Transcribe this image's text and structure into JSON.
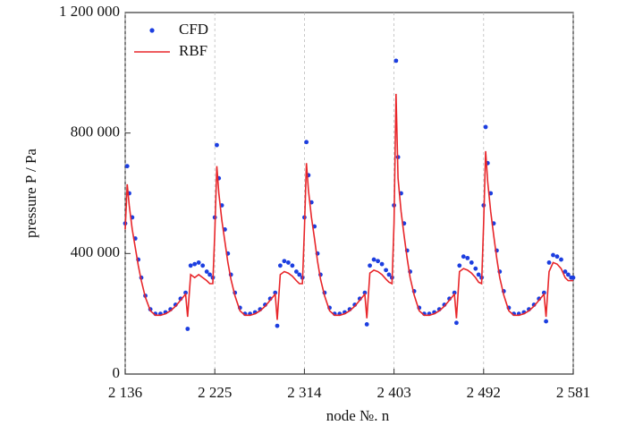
{
  "chart_data": {
    "type": "scatter-line",
    "xlabel": "node №. n",
    "ylabel": "pressure P / Pa",
    "xlim": [
      2136,
      2581
    ],
    "xticks": [
      {
        "value": 2136,
        "label": "2 136"
      },
      {
        "value": 2225,
        "label": "2 225"
      },
      {
        "value": 2314,
        "label": "2 314"
      },
      {
        "value": 2403,
        "label": "2 403"
      },
      {
        "value": 2492,
        "label": "2 492"
      },
      {
        "value": 2581,
        "label": "2 581"
      }
    ],
    "ylim": [
      0,
      1200000
    ],
    "yticks": [
      0,
      {
        "value": 400000,
        "label": "400 000"
      },
      {
        "value": 800000,
        "label": "800 000"
      },
      {
        "value": 1200000,
        "label": "1 200 000"
      }
    ],
    "grid": "x",
    "legend": "upper left",
    "x": [
      2136,
      2138,
      2140,
      2143,
      2146,
      2149,
      2152,
      2156,
      2161,
      2166,
      2171,
      2176,
      2181,
      2186,
      2191,
      2196,
      2198,
      2201,
      2205,
      2209,
      2213,
      2217,
      2220,
      2223,
      2225,
      2227,
      2229,
      2232,
      2235,
      2238,
      2241,
      2245,
      2250,
      2255,
      2260,
      2265,
      2270,
      2275,
      2280,
      2285,
      2287,
      2290,
      2294,
      2298,
      2302,
      2306,
      2309,
      2312,
      2314,
      2316,
      2318,
      2321,
      2324,
      2327,
      2330,
      2334,
      2339,
      2344,
      2349,
      2354,
      2359,
      2364,
      2369,
      2374,
      2376,
      2379,
      2383,
      2387,
      2391,
      2395,
      2398,
      2401,
      2403,
      2405,
      2407,
      2410,
      2413,
      2416,
      2419,
      2423,
      2428,
      2433,
      2438,
      2443,
      2448,
      2453,
      2458,
      2463,
      2465,
      2468,
      2472,
      2476,
      2480,
      2484,
      2487,
      2490,
      2492,
      2494,
      2496,
      2499,
      2502,
      2505,
      2508,
      2512,
      2517,
      2522,
      2527,
      2532,
      2537,
      2542,
      2547,
      2552,
      2554,
      2557,
      2561,
      2565,
      2569,
      2573,
      2576,
      2579,
      2581
    ],
    "series": [
      {
        "name": "CFD",
        "color": "#1c3ee0",
        "style": "points",
        "values": [
          500000,
          690000,
          600000,
          520000,
          450000,
          380000,
          320000,
          260000,
          215000,
          200000,
          200000,
          205000,
          215000,
          230000,
          250000,
          270000,
          150000,
          360000,
          365000,
          370000,
          360000,
          340000,
          330000,
          320000,
          520000,
          760000,
          650000,
          560000,
          480000,
          400000,
          330000,
          270000,
          220000,
          200000,
          200000,
          205000,
          215000,
          230000,
          250000,
          270000,
          160000,
          360000,
          375000,
          370000,
          360000,
          340000,
          330000,
          320000,
          520000,
          770000,
          660000,
          570000,
          490000,
          400000,
          330000,
          270000,
          220000,
          200000,
          200000,
          205000,
          215000,
          230000,
          250000,
          270000,
          165000,
          360000,
          380000,
          375000,
          365000,
          345000,
          330000,
          320000,
          560000,
          1040000,
          720000,
          600000,
          500000,
          410000,
          340000,
          275000,
          220000,
          200000,
          200000,
          205000,
          215000,
          230000,
          250000,
          270000,
          170000,
          360000,
          390000,
          385000,
          370000,
          350000,
          330000,
          320000,
          560000,
          820000,
          700000,
          600000,
          500000,
          410000,
          340000,
          275000,
          220000,
          200000,
          200000,
          205000,
          215000,
          230000,
          250000,
          270000,
          175000,
          370000,
          395000,
          390000,
          380000,
          340000,
          330000,
          320000,
          320000
        ]
      },
      {
        "name": "RBF",
        "color": "#e8262a",
        "style": "line",
        "values": [
          480000,
          630000,
          560000,
          480000,
          420000,
          360000,
          310000,
          255000,
          210000,
          195000,
          195000,
          200000,
          210000,
          225000,
          245000,
          265000,
          190000,
          330000,
          320000,
          330000,
          320000,
          310000,
          300000,
          300000,
          470000,
          690000,
          600000,
          510000,
          440000,
          370000,
          315000,
          260000,
          210000,
          195000,
          195000,
          200000,
          210000,
          225000,
          245000,
          265000,
          180000,
          330000,
          340000,
          335000,
          325000,
          310000,
          300000,
          300000,
          480000,
          700000,
          610000,
          520000,
          450000,
          375000,
          315000,
          260000,
          210000,
          195000,
          195000,
          200000,
          210000,
          225000,
          245000,
          265000,
          185000,
          335000,
          345000,
          340000,
          330000,
          315000,
          305000,
          300000,
          500000,
          930000,
          650000,
          540000,
          460000,
          385000,
          320000,
          262000,
          210000,
          195000,
          195000,
          200000,
          210000,
          225000,
          245000,
          265000,
          185000,
          340000,
          350000,
          345000,
          335000,
          320000,
          305000,
          300000,
          500000,
          740000,
          640000,
          540000,
          460000,
          385000,
          320000,
          262000,
          210000,
          195000,
          195000,
          200000,
          210000,
          225000,
          245000,
          265000,
          190000,
          340000,
          370000,
          365000,
          350000,
          320000,
          310000,
          310000,
          310000
        ]
      }
    ]
  }
}
